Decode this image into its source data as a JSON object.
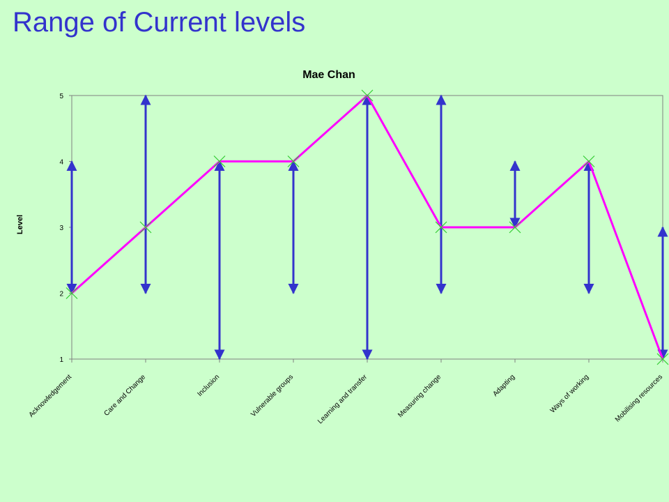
{
  "slide": {
    "title": "Range of Current levels"
  },
  "colors": {
    "background": "#ccffcc",
    "title": "#3333cc",
    "range_arrow": "#3333cc",
    "current_line": "#ff00ff",
    "marker": "#33cc33"
  },
  "chart_data": {
    "type": "line",
    "title": "Mae Chan",
    "xlabel": "",
    "ylabel": "Level",
    "ylim": [
      1,
      5
    ],
    "yticks": [
      1,
      2,
      3,
      4,
      5
    ],
    "grid": false,
    "legend": "none",
    "categories": [
      "Acknowledgement",
      "Care and Change",
      "Inclusion",
      "Vulnerable groups",
      "Learning and transfer",
      "Measuring change",
      "Adapting",
      "Ways of working",
      "Mobilising resources"
    ],
    "series": [
      {
        "type": "line",
        "values": [
          2,
          3,
          4,
          4,
          5,
          3,
          3,
          4,
          1
        ]
      }
    ],
    "ranges": [
      {
        "low": 2,
        "high": 4
      },
      {
        "low": 2,
        "high": 5
      },
      {
        "low": 1,
        "high": 4
      },
      {
        "low": 2,
        "high": 4
      },
      {
        "low": 1,
        "high": 5
      },
      {
        "low": 2,
        "high": 5
      },
      {
        "low": 3,
        "high": 4
      },
      {
        "low": 2,
        "high": 4
      },
      {
        "low": 1,
        "high": 3
      }
    ]
  }
}
